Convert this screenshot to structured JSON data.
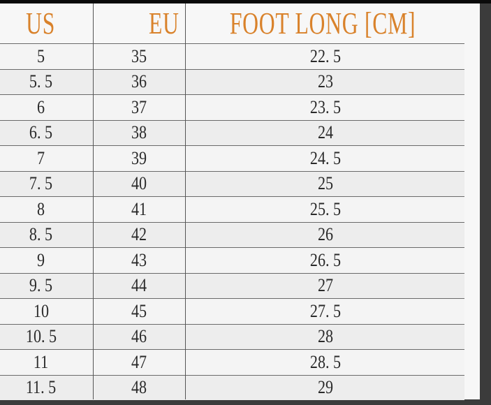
{
  "colors": {
    "header_text": "#d9822b",
    "cell_text": "#2a2a2a",
    "grid": "#555555"
  },
  "headers": [
    "US",
    "EU",
    "FOOT LONG [CM]"
  ],
  "rows": [
    [
      "5",
      "35",
      "22. 5"
    ],
    [
      "5. 5",
      "36",
      "23"
    ],
    [
      "6",
      "37",
      "23. 5"
    ],
    [
      "6. 5",
      "38",
      "24"
    ],
    [
      "7",
      "39",
      "24. 5"
    ],
    [
      "7. 5",
      "40",
      "25"
    ],
    [
      "8",
      "41",
      "25. 5"
    ],
    [
      "8. 5",
      "42",
      "26"
    ],
    [
      "9",
      "43",
      "26. 5"
    ],
    [
      "9. 5",
      "44",
      "27"
    ],
    [
      "10",
      "45",
      "27. 5"
    ],
    [
      "10. 5",
      "46",
      "28"
    ],
    [
      "11",
      "47",
      "28. 5"
    ],
    [
      "11. 5",
      "48",
      "29"
    ]
  ]
}
